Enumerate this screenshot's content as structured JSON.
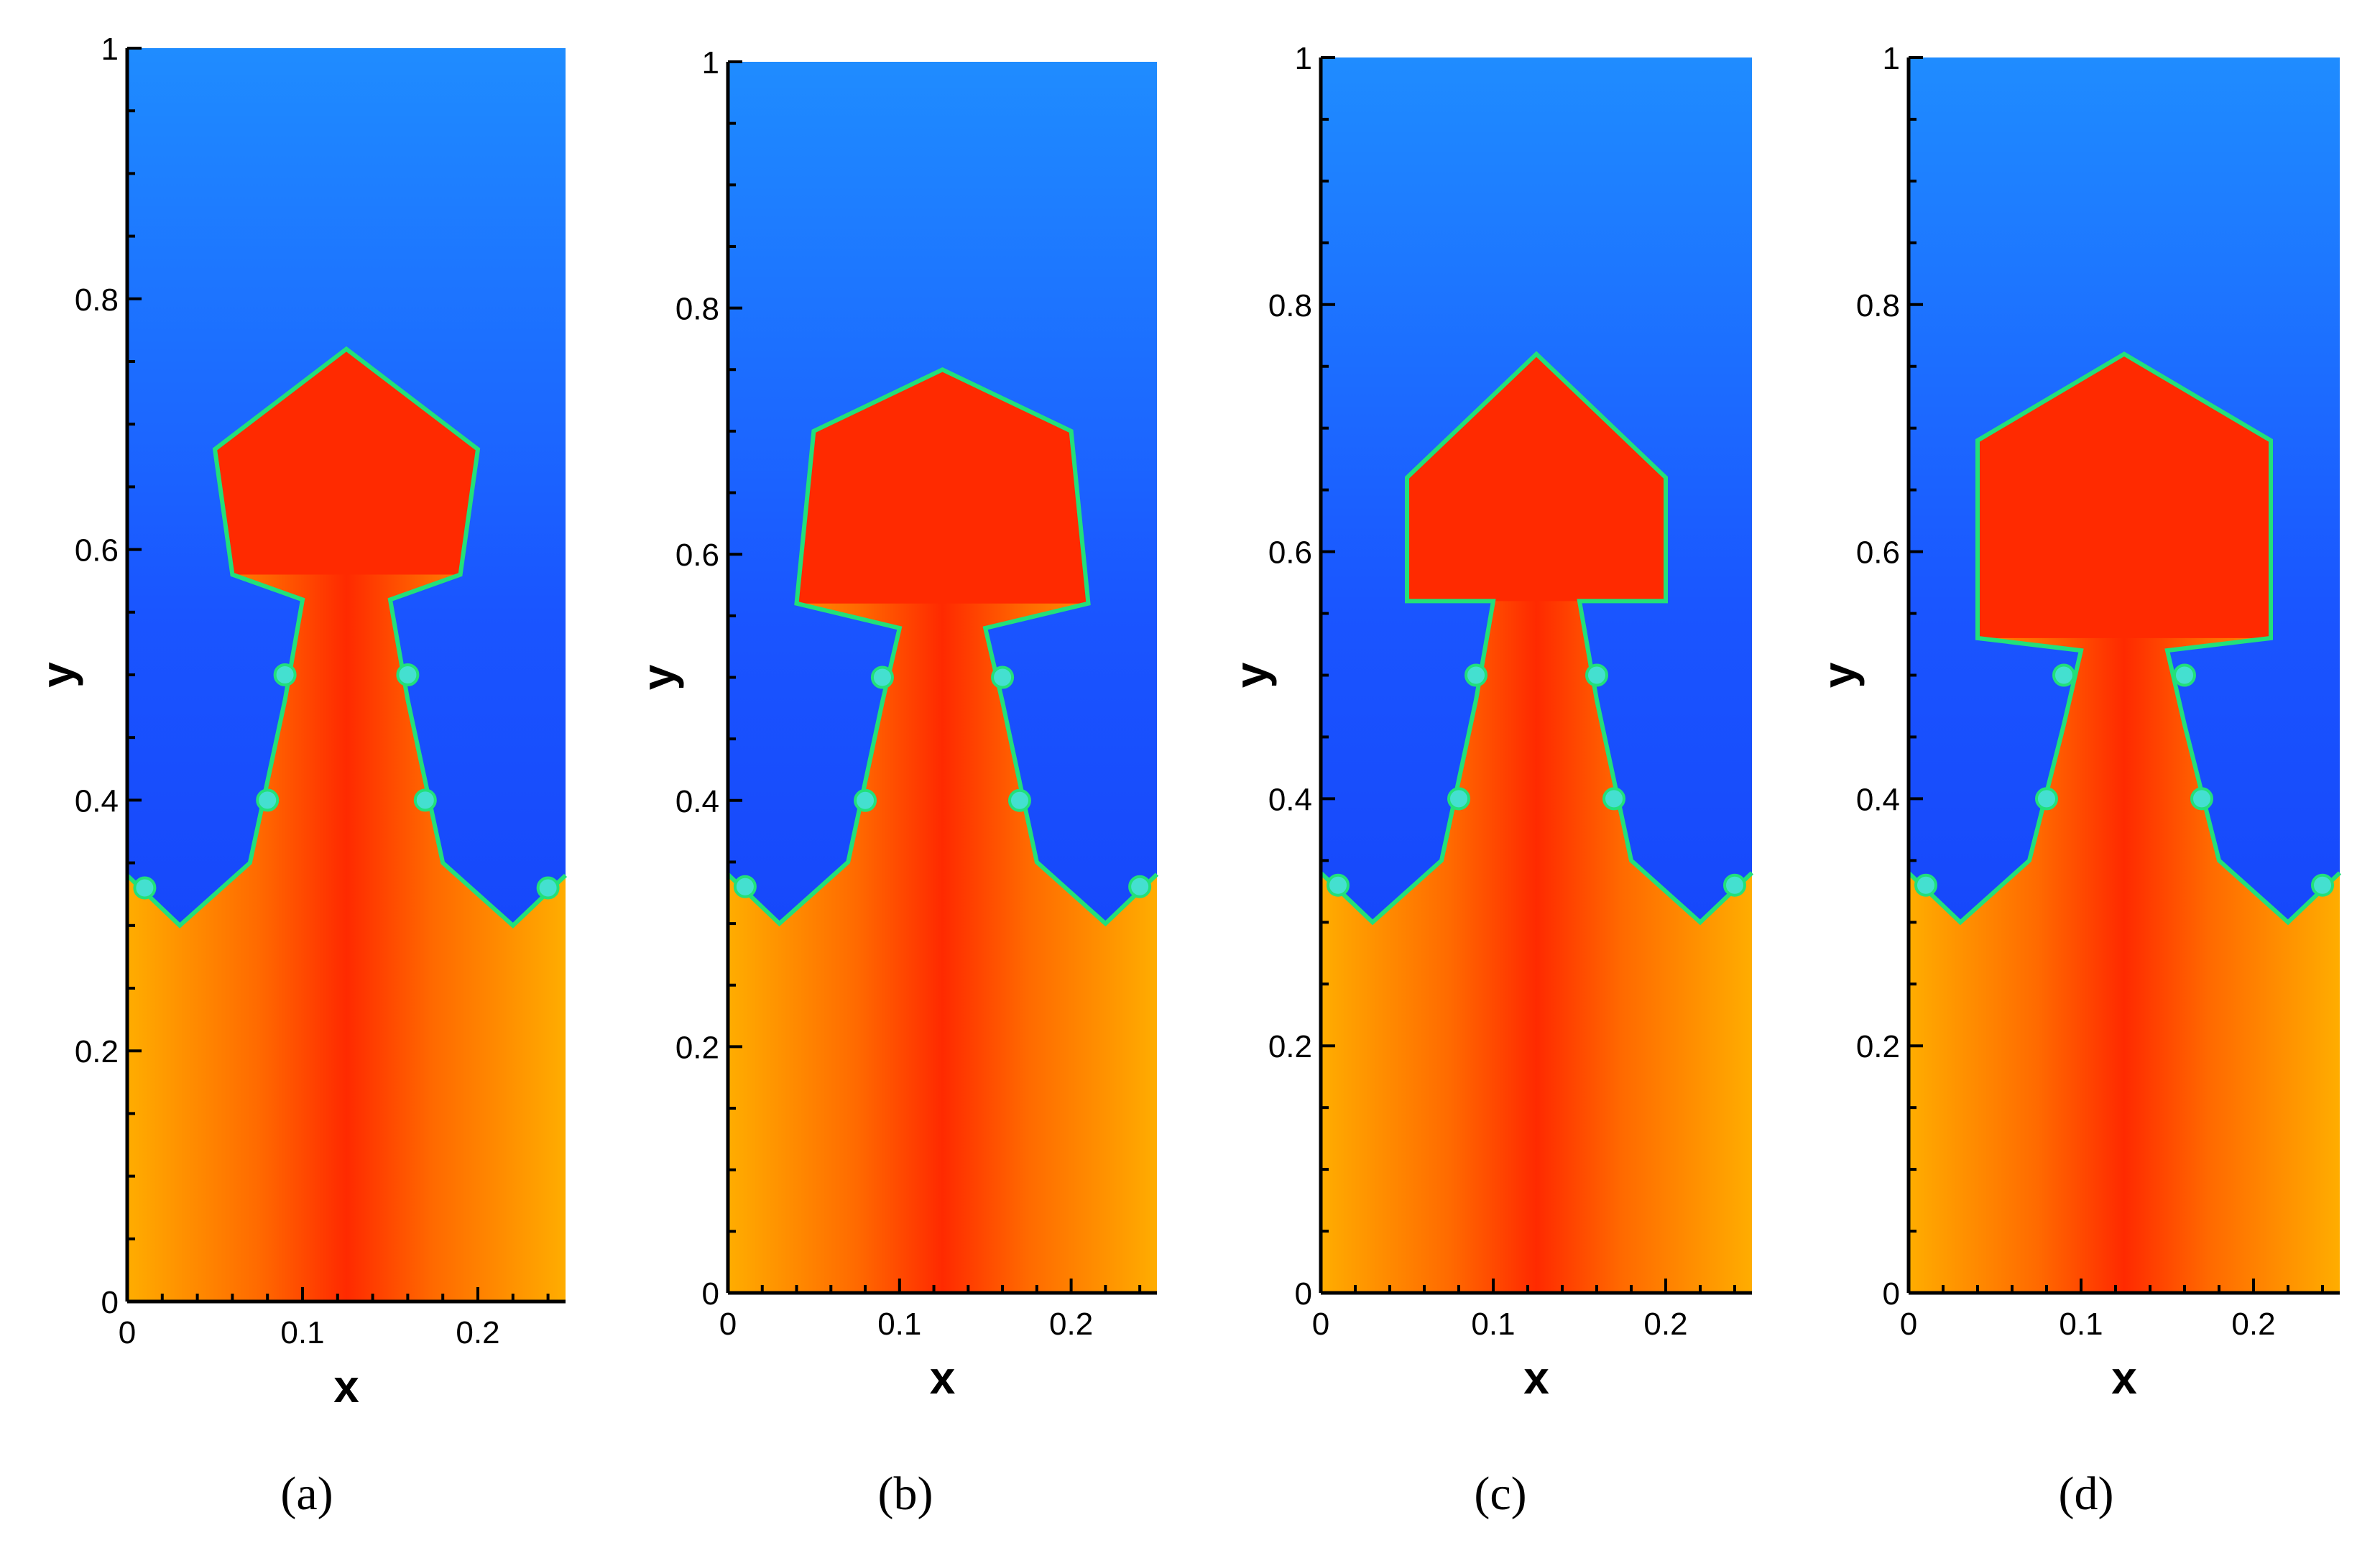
{
  "chart_data": [
    {
      "type": "heatmap",
      "panel": "a",
      "caption": "(a)",
      "xlabel": "x",
      "ylabel": "y",
      "xlim": [
        0,
        0.25
      ],
      "ylim": [
        0,
        1
      ],
      "xticks": [
        "0",
        "0.1",
        "0.2"
      ],
      "yticks": [
        "0",
        "0.2",
        "0.4",
        "0.6",
        "0.8",
        "1"
      ],
      "colors": {
        "heavy_fluid": "#1f5cff",
        "light_fluid": "#ff2a00",
        "interface": "#22e07a",
        "outer_light": "#ffad00"
      },
      "interface_front": [
        [
          0,
          0.34
        ],
        [
          0.03,
          0.3
        ],
        [
          0.07,
          0.35
        ],
        [
          0.09,
          0.48
        ],
        [
          0.1,
          0.56
        ],
        [
          0.06,
          0.58
        ],
        [
          0.05,
          0.68
        ],
        [
          0.125,
          0.76
        ],
        [
          0.2,
          0.68
        ],
        [
          0.19,
          0.58
        ],
        [
          0.15,
          0.56
        ],
        [
          0.16,
          0.48
        ],
        [
          0.18,
          0.35
        ],
        [
          0.22,
          0.3
        ],
        [
          0.25,
          0.34
        ]
      ]
    },
    {
      "type": "heatmap",
      "panel": "b",
      "caption": "(b)",
      "xlabel": "x",
      "ylabel": "y",
      "xlim": [
        0,
        0.25
      ],
      "ylim": [
        0,
        1
      ],
      "xticks": [
        "0",
        "0.1",
        "0.2"
      ],
      "yticks": [
        "0",
        "0.2",
        "0.4",
        "0.6",
        "0.8",
        "1"
      ],
      "colors": {
        "heavy_fluid": "#1f5cff",
        "light_fluid": "#ff2a00",
        "interface": "#22e07a",
        "outer_light": "#ffad00"
      },
      "interface_front": [
        [
          0,
          0.34
        ],
        [
          0.03,
          0.3
        ],
        [
          0.07,
          0.35
        ],
        [
          0.09,
          0.48
        ],
        [
          0.1,
          0.54
        ],
        [
          0.04,
          0.56
        ],
        [
          0.05,
          0.7
        ],
        [
          0.125,
          0.75
        ],
        [
          0.2,
          0.7
        ],
        [
          0.21,
          0.56
        ],
        [
          0.15,
          0.54
        ],
        [
          0.16,
          0.48
        ],
        [
          0.18,
          0.35
        ],
        [
          0.22,
          0.3
        ],
        [
          0.25,
          0.34
        ]
      ]
    },
    {
      "type": "heatmap",
      "panel": "c",
      "caption": "(c)",
      "xlabel": "x",
      "ylabel": "y",
      "xlim": [
        0,
        0.25
      ],
      "ylim": [
        0,
        1
      ],
      "xticks": [
        "0",
        "0.1",
        "0.2"
      ],
      "yticks": [
        "0",
        "0.2",
        "0.4",
        "0.6",
        "0.8",
        "1"
      ],
      "colors": {
        "heavy_fluid": "#1f5cff",
        "light_fluid": "#ff2a00",
        "interface": "#22e07a",
        "outer_light": "#ffad00"
      },
      "interface_front": [
        [
          0,
          0.34
        ],
        [
          0.03,
          0.3
        ],
        [
          0.07,
          0.35
        ],
        [
          0.09,
          0.48
        ],
        [
          0.1,
          0.56
        ],
        [
          0.05,
          0.56
        ],
        [
          0.05,
          0.66
        ],
        [
          0.125,
          0.76
        ],
        [
          0.2,
          0.66
        ],
        [
          0.2,
          0.56
        ],
        [
          0.15,
          0.56
        ],
        [
          0.16,
          0.48
        ],
        [
          0.18,
          0.35
        ],
        [
          0.22,
          0.3
        ],
        [
          0.25,
          0.34
        ]
      ]
    },
    {
      "type": "heatmap",
      "panel": "d",
      "caption": "(d)",
      "xlabel": "x",
      "ylabel": "y",
      "xlim": [
        0,
        0.25
      ],
      "ylim": [
        0,
        1
      ],
      "xticks": [
        "0",
        "0.1",
        "0.2"
      ],
      "yticks": [
        "0",
        "0.2",
        "0.4",
        "0.6",
        "0.8",
        "1"
      ],
      "colors": {
        "heavy_fluid": "#1f5cff",
        "light_fluid": "#ff2a00",
        "interface": "#22e07a",
        "outer_light": "#ffad00"
      },
      "interface_front": [
        [
          0,
          0.34
        ],
        [
          0.03,
          0.3
        ],
        [
          0.07,
          0.35
        ],
        [
          0.09,
          0.46
        ],
        [
          0.1,
          0.52
        ],
        [
          0.04,
          0.53
        ],
        [
          0.04,
          0.69
        ],
        [
          0.125,
          0.76
        ],
        [
          0.21,
          0.69
        ],
        [
          0.21,
          0.53
        ],
        [
          0.15,
          0.52
        ],
        [
          0.16,
          0.46
        ],
        [
          0.18,
          0.35
        ],
        [
          0.22,
          0.3
        ],
        [
          0.25,
          0.34
        ]
      ]
    }
  ]
}
